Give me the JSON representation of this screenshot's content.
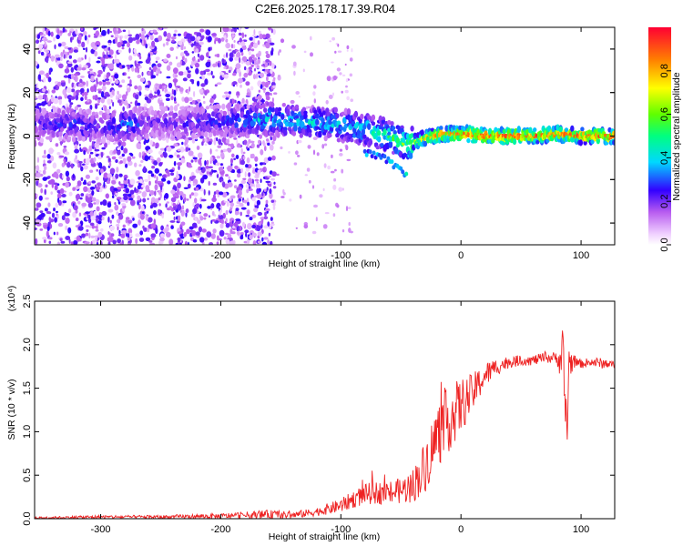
{
  "figure": {
    "title": "C2E6.2025.178.17.39.R04"
  },
  "colorbar": {
    "label": "Normalized spectral amplitude",
    "ticks": [
      0.0,
      0.2,
      0.4,
      0.6,
      0.8
    ],
    "tick_labels": [
      "0.0",
      "0.2",
      "0.4",
      "0.6",
      "0.8"
    ]
  },
  "chart_data": [
    {
      "type": "heatmap",
      "title": "",
      "xlabel": "Height of straight line (km)",
      "ylabel": "Frequency (Hz)",
      "xlim": [
        -355,
        128
      ],
      "ylim": [
        -50,
        50
      ],
      "x_ticks": [
        -300,
        -200,
        -100,
        0,
        100
      ],
      "x_tick_labels": [
        "-300",
        "-200",
        "-100",
        "0",
        "100"
      ],
      "y_ticks": [
        -40,
        -20,
        0,
        20,
        40
      ],
      "y_tick_labels": [
        "-40",
        "-20",
        "0",
        "20",
        "40"
      ],
      "colormap": "rainbow",
      "value_range": [
        0,
        1
      ],
      "ridge": [
        {
          "x": -345,
          "y": 5,
          "amp": 0.25
        },
        {
          "x": -320,
          "y": 6,
          "amp": 0.28
        },
        {
          "x": -300,
          "y": 4,
          "amp": 0.22
        },
        {
          "x": -280,
          "y": 5,
          "amp": 0.35
        },
        {
          "x": -260,
          "y": 6,
          "amp": 0.22
        },
        {
          "x": -230,
          "y": 6,
          "amp": 0.24
        },
        {
          "x": -200,
          "y": 7,
          "amp": 0.28
        },
        {
          "x": -180,
          "y": 7,
          "amp": 0.34
        },
        {
          "x": -160,
          "y": 8,
          "amp": 0.42
        },
        {
          "x": -140,
          "y": 7,
          "amp": 0.4
        },
        {
          "x": -120,
          "y": 6,
          "amp": 0.42
        },
        {
          "x": -100,
          "y": 5,
          "amp": 0.4
        },
        {
          "x": -80,
          "y": 3,
          "amp": 0.45
        },
        {
          "x": -60,
          "y": 0,
          "amp": 0.5
        },
        {
          "x": -45,
          "y": -4,
          "amp": 0.6
        },
        {
          "x": -30,
          "y": -1,
          "amp": 0.75
        },
        {
          "x": -15,
          "y": 1,
          "amp": 0.82
        },
        {
          "x": 0,
          "y": 1,
          "amp": 0.88
        },
        {
          "x": 20,
          "y": 0,
          "amp": 0.9
        },
        {
          "x": 40,
          "y": 0,
          "amp": 0.9
        },
        {
          "x": 60,
          "y": 0,
          "amp": 0.9
        },
        {
          "x": 80,
          "y": 1,
          "amp": 0.85
        },
        {
          "x": 100,
          "y": 0,
          "amp": 0.88
        },
        {
          "x": 125,
          "y": 0,
          "amp": 0.88
        }
      ],
      "branch": [
        {
          "x": -80,
          "y": -8,
          "amp": 0.35
        },
        {
          "x": -65,
          "y": -10,
          "amp": 0.35
        },
        {
          "x": -55,
          "y": -14,
          "amp": 0.4
        },
        {
          "x": -45,
          "y": -18,
          "amp": 0.45
        }
      ]
    },
    {
      "type": "line",
      "title": "",
      "xlabel": "Height of straight line (km)",
      "ylabel": "SNR (10 * v/v)",
      "y_multiplier_label": "(x10⁴)",
      "xlim": [
        -355,
        128
      ],
      "ylim": [
        0,
        2.5
      ],
      "x_ticks": [
        -300,
        -200,
        -100,
        0,
        100
      ],
      "x_tick_labels": [
        "-300",
        "-200",
        "-100",
        "0",
        "100"
      ],
      "y_ticks": [
        0.0,
        0.5,
        1.0,
        1.5,
        2.0,
        2.5
      ],
      "y_tick_labels": [
        "0.0",
        "0.5",
        "1.0",
        "1.5",
        "2.0",
        "2.5"
      ],
      "series": [
        {
          "color": "#ee2222",
          "x": [
            -355,
            -300,
            -250,
            -200,
            -180,
            -160,
            -140,
            -120,
            -100,
            -90,
            -80,
            -70,
            -60,
            -50,
            -40,
            -30,
            -20,
            -10,
            0,
            10,
            20,
            30,
            40,
            50,
            60,
            70,
            80,
            85,
            88,
            90,
            95,
            100,
            110,
            120,
            128
          ],
          "y": [
            0.01,
            0.02,
            0.02,
            0.03,
            0.04,
            0.05,
            0.04,
            0.08,
            0.15,
            0.22,
            0.28,
            0.3,
            0.3,
            0.32,
            0.38,
            0.6,
            0.95,
            1.15,
            1.3,
            1.45,
            1.65,
            1.75,
            1.8,
            1.82,
            1.82,
            1.85,
            1.85,
            1.8,
            1.0,
            1.8,
            1.8,
            1.78,
            1.8,
            1.78,
            1.77
          ],
          "noise": [
            0.01,
            0.02,
            0.02,
            0.03,
            0.04,
            0.05,
            0.04,
            0.05,
            0.08,
            0.1,
            0.12,
            0.13,
            0.14,
            0.15,
            0.2,
            0.3,
            0.38,
            0.38,
            0.32,
            0.22,
            0.15,
            0.1,
            0.07,
            0.06,
            0.06,
            0.06,
            0.07,
            0.35,
            0.6,
            0.2,
            0.05,
            0.05,
            0.06,
            0.06,
            0.04
          ]
        }
      ]
    }
  ]
}
